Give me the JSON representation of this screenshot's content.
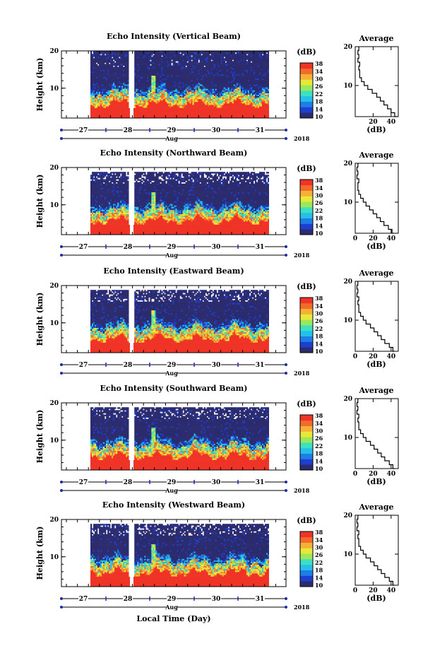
{
  "figure": {
    "xlabel": "Local Time (Day)",
    "month_label": "Aug",
    "year_label": "2018"
  },
  "colors": {
    "scale": [
      "#2b2b6e",
      "#1d3fd0",
      "#1e7ee6",
      "#25c0ea",
      "#3de0c0",
      "#9be85a",
      "#e8e83a",
      "#f5b035",
      "#f26b2a",
      "#f03327"
    ],
    "axis": "#000000",
    "tick_marker": "#1b2ba8"
  },
  "chart_data": [
    {
      "type": "heatmap",
      "title": "Echo Intensity (Vertical Beam)",
      "ylabel": "Height (km)",
      "colorbar_title": "(dB)",
      "colorbar_ticks": [
        "10",
        "14",
        "18",
        "22",
        "26",
        "30",
        "34",
        "38"
      ],
      "colorbar_range": [
        10,
        38
      ],
      "x_ticks": [
        "27",
        "28",
        "29",
        "30",
        "31"
      ],
      "y_ticks": [
        "10",
        "20"
      ],
      "ylim": [
        2,
        20
      ],
      "profile": {
        "title": "Average",
        "xlabel": "(dB)",
        "x_ticks": [
          "20",
          "40"
        ],
        "y_ticks": [
          "10",
          "20"
        ],
        "xlim": [
          0,
          48
        ],
        "heights": [
          2,
          3,
          4,
          5,
          6,
          7,
          8,
          9,
          10,
          11,
          12,
          13,
          14,
          15,
          16,
          17,
          18,
          19,
          20
        ],
        "values": [
          47,
          44,
          40,
          36,
          32,
          28,
          24,
          19,
          14,
          10,
          7,
          5,
          5,
          4,
          5,
          3,
          4,
          3,
          4
        ]
      }
    },
    {
      "type": "heatmap",
      "title": "Echo Intensity (Northward Beam)",
      "ylabel": "Height (km)",
      "colorbar_title": "(dB)",
      "colorbar_ticks": [
        "10",
        "14",
        "18",
        "22",
        "26",
        "30",
        "34",
        "38"
      ],
      "colorbar_range": [
        10,
        38
      ],
      "x_ticks": [
        "27",
        "28",
        "29",
        "30",
        "31"
      ],
      "y_ticks": [
        "10",
        "20"
      ],
      "ylim": [
        2,
        20
      ],
      "profile": {
        "title": "Average",
        "xlabel": "(dB)",
        "x_ticks": [
          "0",
          "20",
          "40"
        ],
        "y_ticks": [
          "10",
          "20"
        ],
        "xlim": [
          0,
          48
        ],
        "heights": [
          2,
          3,
          4,
          5,
          6,
          7,
          8,
          9,
          10,
          11,
          12,
          13,
          14,
          15,
          16,
          17,
          18,
          19,
          20
        ],
        "values": [
          43,
          41,
          37,
          32,
          28,
          24,
          20,
          16,
          12,
          9,
          6,
          4,
          3,
          3,
          4,
          2,
          3,
          2,
          3
        ]
      }
    },
    {
      "type": "heatmap",
      "title": "Echo Intensity (Eastward Beam)",
      "ylabel": "Height (km)",
      "colorbar_title": "(dB)",
      "colorbar_ticks": [
        "10",
        "14",
        "18",
        "22",
        "26",
        "30",
        "34",
        "38"
      ],
      "colorbar_range": [
        10,
        38
      ],
      "x_ticks": [
        "27",
        "28",
        "29",
        "30",
        "31"
      ],
      "y_ticks": [
        "10",
        "20"
      ],
      "ylim": [
        2,
        20
      ],
      "profile": {
        "title": "Average",
        "xlabel": "(dB)",
        "x_ticks": [
          "0",
          "20",
          "40"
        ],
        "y_ticks": [
          "10",
          "20"
        ],
        "xlim": [
          0,
          48
        ],
        "heights": [
          2,
          3,
          4,
          5,
          6,
          7,
          8,
          9,
          10,
          11,
          12,
          13,
          14,
          15,
          16,
          17,
          18,
          19,
          20
        ],
        "values": [
          44,
          42,
          38,
          33,
          29,
          25,
          21,
          17,
          12,
          9,
          6,
          4,
          4,
          3,
          4,
          2,
          3,
          2,
          3
        ]
      }
    },
    {
      "type": "heatmap",
      "title": "Echo Intensity (Southward Beam)",
      "ylabel": "Height (km)",
      "colorbar_title": "(dB)",
      "colorbar_ticks": [
        "10",
        "14",
        "18",
        "22",
        "26",
        "30",
        "34",
        "38"
      ],
      "colorbar_range": [
        10,
        38
      ],
      "x_ticks": [
        "27",
        "28",
        "29",
        "30",
        "31"
      ],
      "y_ticks": [
        "10",
        "20"
      ],
      "ylim": [
        2,
        20
      ],
      "profile": {
        "title": "Average",
        "xlabel": "(dB)",
        "x_ticks": [
          "0",
          "20",
          "40"
        ],
        "y_ticks": [
          "10",
          "20"
        ],
        "xlim": [
          0,
          48
        ],
        "heights": [
          2,
          3,
          4,
          5,
          6,
          7,
          8,
          9,
          10,
          11,
          12,
          13,
          14,
          15,
          16,
          17,
          18,
          19,
          20
        ],
        "values": [
          44,
          42,
          38,
          33,
          29,
          25,
          21,
          17,
          12,
          9,
          6,
          4,
          4,
          3,
          4,
          2,
          3,
          2,
          3
        ]
      }
    },
    {
      "type": "heatmap",
      "title": "Echo Intensity (Westward Beam)",
      "ylabel": "Height (km)",
      "colorbar_title": "(dB)",
      "colorbar_ticks": [
        "10",
        "14",
        "18",
        "22",
        "26",
        "30",
        "34",
        "38"
      ],
      "colorbar_range": [
        10,
        38
      ],
      "x_ticks": [
        "27",
        "28",
        "29",
        "30",
        "31"
      ],
      "y_ticks": [
        "10",
        "20"
      ],
      "ylim": [
        2,
        20
      ],
      "profile": {
        "title": "Average",
        "xlabel": "(dB)",
        "x_ticks": [
          "0",
          "20",
          "40"
        ],
        "y_ticks": [
          "10",
          "20"
        ],
        "xlim": [
          0,
          48
        ],
        "heights": [
          2,
          3,
          4,
          5,
          6,
          7,
          8,
          9,
          10,
          11,
          12,
          13,
          14,
          15,
          16,
          17,
          18,
          19,
          20
        ],
        "values": [
          44,
          42,
          38,
          33,
          29,
          25,
          21,
          17,
          12,
          9,
          6,
          4,
          4,
          3,
          4,
          2,
          3,
          2,
          3
        ]
      }
    }
  ]
}
